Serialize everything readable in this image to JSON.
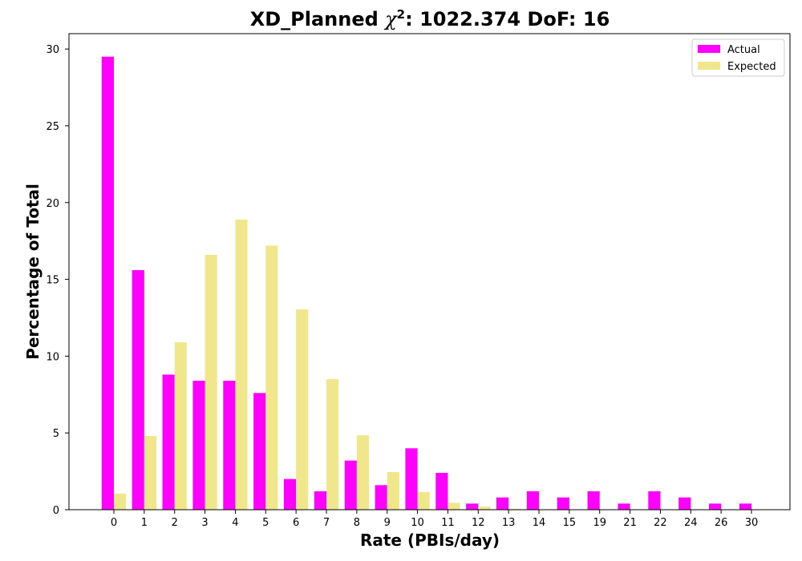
{
  "chart_data": {
    "type": "bar",
    "title_main": "XD_Planned ",
    "title_chi": "χ",
    "title_sup": "2",
    "title_rest": ": 1022.374 DoF: 16",
    "xlabel": "Rate (PBIs/day)",
    "ylabel": "Percentage of Total",
    "ylim": [
      0,
      31
    ],
    "yticks": [
      0,
      5,
      10,
      15,
      20,
      25,
      30
    ],
    "categories": [
      "0",
      "1",
      "2",
      "3",
      "4",
      "5",
      "6",
      "7",
      "8",
      "9",
      "10",
      "11",
      "12",
      "13",
      "14",
      "15",
      "19",
      "21",
      "22",
      "24",
      "26",
      "30"
    ],
    "series": [
      {
        "name": "Actual",
        "color": "#ff00ff",
        "values": [
          29.5,
          15.6,
          8.8,
          8.4,
          8.4,
          7.6,
          2.0,
          1.2,
          3.2,
          1.6,
          4.0,
          2.4,
          0.4,
          0.8,
          1.2,
          0.8,
          1.2,
          0.4,
          1.2,
          0.8,
          0.4,
          0.4
        ]
      },
      {
        "name": "Expected",
        "color": "#f0e68c",
        "values": [
          1.05,
          4.8,
          10.9,
          16.6,
          18.9,
          17.2,
          13.05,
          8.5,
          4.85,
          2.45,
          1.15,
          0.45,
          0.2,
          0.06,
          0.02,
          0.0,
          0.0,
          0.0,
          0.0,
          0.0,
          0.0,
          0.0
        ]
      }
    ],
    "legend_position": "upper right",
    "grid": false
  }
}
